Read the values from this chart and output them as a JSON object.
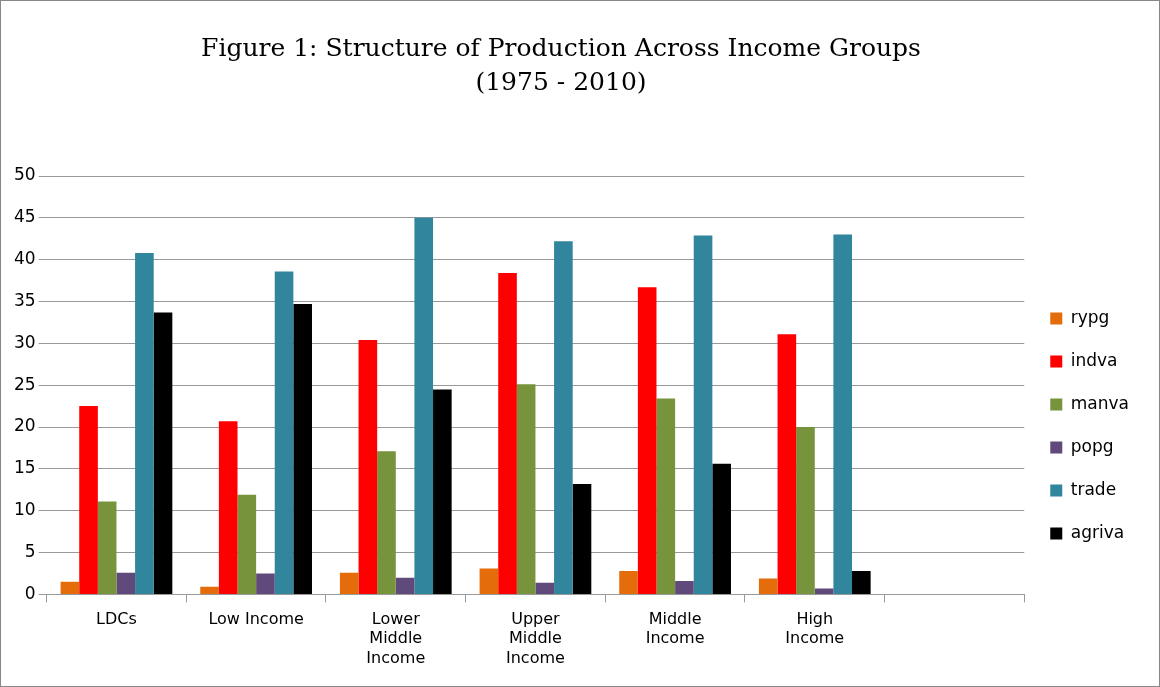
{
  "chart_data": {
    "type": "bar",
    "title": "Figure 1: Structure of Production Across Income Groups (1975 - 2010)",
    "categories": [
      "LDCs",
      "Low Income",
      "Lower Middle Income",
      "Upper Middle Income",
      "Middle Income",
      "High Income",
      null
    ],
    "series": [
      {
        "name": "rypg",
        "color": "#e46c0a",
        "values": [
          1.5,
          0.9,
          2.6,
          3.1,
          2.8,
          1.9,
          null
        ]
      },
      {
        "name": "indva",
        "color": "#ff0000",
        "values": [
          22.5,
          20.7,
          30.4,
          38.4,
          36.7,
          31.1,
          null
        ]
      },
      {
        "name": "manva",
        "color": "#77933c",
        "values": [
          11.1,
          11.9,
          17.1,
          25.1,
          23.4,
          20.0,
          null
        ]
      },
      {
        "name": "popg",
        "color": "#604a7b",
        "values": [
          2.6,
          2.5,
          2.0,
          1.4,
          1.6,
          0.7,
          null
        ]
      },
      {
        "name": "trade",
        "color": "#31859c",
        "values": [
          40.8,
          38.6,
          45.0,
          42.2,
          42.9,
          43.0,
          null
        ]
      },
      {
        "name": "agriva",
        "color": "#000000",
        "values": [
          33.7,
          34.7,
          24.5,
          13.2,
          15.6,
          2.8,
          null
        ]
      }
    ],
    "ylim": [
      0,
      50
    ],
    "yticks": [
      0,
      5,
      10,
      15,
      20,
      25,
      30,
      35,
      40,
      45,
      50
    ],
    "grid": "y",
    "legend": "right"
  }
}
